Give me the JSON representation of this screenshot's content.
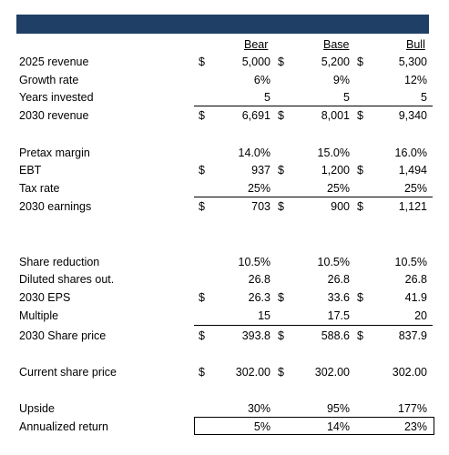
{
  "headers": {
    "bear": "Bear",
    "base": "Base",
    "bull": "Bull"
  },
  "rows": [
    {
      "label": "2025 revenue",
      "cur": [
        "$",
        "$",
        "$"
      ],
      "vals": [
        "5,000",
        "5,200",
        "5,300"
      ]
    },
    {
      "label": "Growth rate",
      "cur": [
        "",
        "",
        ""
      ],
      "vals": [
        "6%",
        "9%",
        "12%"
      ]
    },
    {
      "label": "Years invested",
      "cur": [
        "",
        "",
        ""
      ],
      "vals": [
        "5",
        "5",
        "5"
      ]
    },
    {
      "label": "2030 revenue",
      "cur": [
        "$",
        "$",
        "$"
      ],
      "vals": [
        "6,691",
        "8,001",
        "9,340"
      ]
    },
    {
      "label": "Pretax margin",
      "cur": [
        "",
        "",
        ""
      ],
      "vals": [
        "14.0%",
        "15.0%",
        "16.0%"
      ]
    },
    {
      "label": "EBT",
      "cur": [
        "$",
        "$",
        "$"
      ],
      "vals": [
        "937",
        "1,200",
        "1,494"
      ]
    },
    {
      "label": "Tax rate",
      "cur": [
        "",
        "",
        ""
      ],
      "vals": [
        "25%",
        "25%",
        "25%"
      ]
    },
    {
      "label": "2030 earnings",
      "cur": [
        "$",
        "$",
        "$"
      ],
      "vals": [
        "703",
        "900",
        "1,121"
      ]
    },
    {
      "label": "Share reduction",
      "cur": [
        "",
        "",
        ""
      ],
      "vals": [
        "10.5%",
        "10.5%",
        "10.5%"
      ]
    },
    {
      "label": "Diluted shares out.",
      "cur": [
        "",
        "",
        ""
      ],
      "vals": [
        "26.8",
        "26.8",
        "26.8"
      ]
    },
    {
      "label": "2030 EPS",
      "cur": [
        "$",
        "$",
        "$"
      ],
      "vals": [
        "26.3",
        "33.6",
        "41.9"
      ]
    },
    {
      "label": "Multiple",
      "cur": [
        "",
        "",
        ""
      ],
      "vals": [
        "15",
        "17.5",
        "20"
      ]
    },
    {
      "label": "2030 Share price",
      "cur": [
        "$",
        "$",
        "$"
      ],
      "vals": [
        "393.8",
        "588.6",
        "837.9"
      ]
    },
    {
      "label": "Current share price",
      "cur": [
        "$",
        "$",
        ""
      ],
      "vals": [
        "302.00",
        "302.00",
        "302.00"
      ]
    },
    {
      "label": "Upside",
      "cur": [
        "",
        "",
        ""
      ],
      "vals": [
        "30%",
        "95%",
        "177%"
      ]
    },
    {
      "label": "Annualized return",
      "cur": [
        "",
        "",
        ""
      ],
      "vals": [
        "5%",
        "14%",
        "23%"
      ]
    }
  ]
}
